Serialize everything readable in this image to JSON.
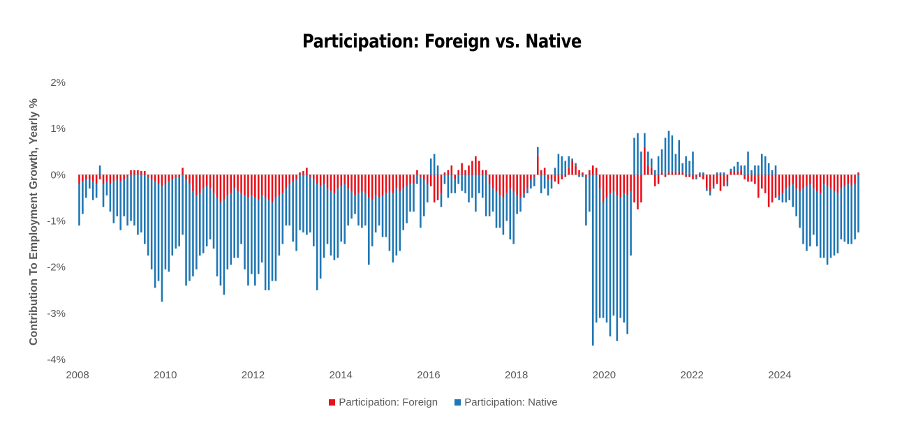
{
  "chart_data": {
    "type": "bar",
    "stacked": true,
    "title": "Participation: Foreign vs. Native",
    "xlabel": "",
    "ylabel": "Contribution To Employment Growth, Yearly %",
    "ylim": [
      -4,
      2
    ],
    "yticks": [
      "2%",
      "1%",
      "0%",
      "-1%",
      "-2%",
      "-3%",
      "-4%"
    ],
    "ytick_values": [
      2,
      1,
      0,
      -1,
      -2,
      -3,
      -4
    ],
    "xticks": [
      "2008",
      "2010",
      "2012",
      "2014",
      "2016",
      "2018",
      "2020",
      "2022",
      "2024"
    ],
    "xtick_values": [
      2008,
      2010,
      2012,
      2014,
      2016,
      2018,
      2020,
      2022,
      2024
    ],
    "x_start": 2008,
    "x_end": 2025.83,
    "frequency": "monthly",
    "legend_position": "bottom",
    "series": [
      {
        "name": "Participation: Foreign",
        "color": "#E8111B",
        "values": [
          -0.2,
          -0.15,
          -0.1,
          -0.1,
          -0.15,
          -0.2,
          -0.1,
          -0.2,
          -0.15,
          -0.2,
          -0.15,
          -0.1,
          -0.15,
          -0.1,
          -0.05,
          0.1,
          0.1,
          0.1,
          0.08,
          0.08,
          -0.05,
          -0.1,
          -0.15,
          -0.2,
          -0.25,
          -0.2,
          -0.15,
          -0.1,
          -0.05,
          -0.05,
          0.15,
          -0.1,
          -0.2,
          -0.35,
          -0.45,
          -0.4,
          -0.3,
          -0.25,
          -0.3,
          -0.4,
          -0.5,
          -0.6,
          -0.55,
          -0.45,
          -0.4,
          -0.3,
          -0.35,
          -0.4,
          -0.45,
          -0.5,
          -0.45,
          -0.5,
          -0.55,
          -0.45,
          -0.5,
          -0.55,
          -0.6,
          -0.5,
          -0.45,
          -0.4,
          -0.3,
          -0.2,
          -0.15,
          -0.1,
          0.05,
          0.08,
          0.15,
          -0.05,
          -0.1,
          -0.2,
          -0.25,
          -0.2,
          -0.3,
          -0.35,
          -0.4,
          -0.3,
          -0.25,
          -0.2,
          -0.3,
          -0.35,
          -0.45,
          -0.4,
          -0.35,
          -0.4,
          -0.5,
          -0.55,
          -0.45,
          -0.5,
          -0.45,
          -0.4,
          -0.35,
          -0.4,
          -0.3,
          -0.35,
          -0.3,
          -0.25,
          -0.2,
          -0.2,
          0.1,
          -0.05,
          -0.1,
          -0.2,
          -0.25,
          -0.6,
          -0.55,
          -0.4,
          0.05,
          0.1,
          0.2,
          -0.1,
          0.1,
          0.25,
          0.1,
          0.2,
          0.3,
          0.4,
          0.3,
          0.1,
          0.1,
          -0.2,
          -0.3,
          -0.35,
          -0.45,
          -0.5,
          -0.4,
          -0.3,
          -0.35,
          -0.45,
          -0.5,
          -0.4,
          -0.3,
          -0.1,
          -0.05,
          0.4,
          0.1,
          0.15,
          -0.1,
          -0.1,
          -0.15,
          -0.2,
          -0.1,
          -0.05,
          0.15,
          0.3,
          0.2,
          0.1,
          0.05,
          -0.05,
          0.1,
          0.2,
          0.15,
          -0.3,
          -0.6,
          -0.5,
          -0.4,
          -0.35,
          -0.45,
          -0.5,
          -0.4,
          -0.45,
          -0.35,
          -0.6,
          -0.75,
          -0.6,
          0.6,
          0.2,
          0.15,
          -0.25,
          -0.2,
          0.05,
          -0.05,
          0.05,
          0.05,
          0.05,
          0.05,
          0.05,
          -0.05,
          -0.05,
          -0.1,
          -0.05,
          -0.05,
          -0.1,
          -0.3,
          -0.35,
          -0.25,
          -0.2,
          -0.35,
          -0.25,
          -0.15,
          0.08,
          0.08,
          0.08,
          0.1,
          -0.1,
          -0.15,
          -0.15,
          -0.2,
          -0.5,
          -0.3,
          -0.4,
          -0.7,
          -0.6,
          -0.5,
          -0.45,
          -0.4,
          -0.3,
          -0.25,
          -0.2,
          -0.3,
          -0.35,
          -0.3,
          -0.25,
          -0.2,
          -0.3,
          -0.35,
          -0.4,
          -0.2,
          -0.25,
          -0.3,
          -0.35,
          -0.4,
          -0.3,
          -0.25,
          -0.2,
          -0.25,
          -0.2,
          0.05
        ]
      },
      {
        "name": "Participation: Native",
        "color": "#1F77B4",
        "values": [
          -0.9,
          -0.7,
          -0.4,
          -0.2,
          -0.4,
          -0.3,
          0.2,
          -0.5,
          -0.3,
          -0.6,
          -0.9,
          -0.8,
          -1.05,
          -0.8,
          -1.05,
          -1.0,
          -1.1,
          -1.3,
          -1.25,
          -1.5,
          -1.7,
          -1.95,
          -2.3,
          -2.1,
          -2.5,
          -1.85,
          -1.95,
          -1.65,
          -1.55,
          -1.5,
          -1.3,
          -2.3,
          -2.1,
          -1.85,
          -1.6,
          -1.35,
          -1.4,
          -1.3,
          -1.1,
          -1.2,
          -1.7,
          -1.8,
          -2.05,
          -1.6,
          -1.55,
          -1.5,
          -1.45,
          -1.1,
          -1.6,
          -1.9,
          -1.7,
          -1.9,
          -1.6,
          -1.45,
          -2.0,
          -1.95,
          -1.7,
          -1.8,
          -1.3,
          -1.1,
          -0.8,
          -0.9,
          -1.3,
          -1.55,
          -1.2,
          -1.25,
          -1.3,
          -1.2,
          -1.45,
          -2.3,
          -2.0,
          -1.6,
          -1.2,
          -1.4,
          -1.45,
          -1.5,
          -1.2,
          -1.3,
          -0.8,
          -0.6,
          -0.4,
          -0.7,
          -0.8,
          -0.7,
          -1.45,
          -1.0,
          -0.8,
          -0.6,
          -0.9,
          -0.95,
          -1.3,
          -1.5,
          -1.45,
          -1.3,
          -0.9,
          -0.8,
          -0.6,
          -0.6,
          -0.2,
          -1.1,
          -0.8,
          -0.4,
          0.35,
          0.45,
          0.2,
          -0.3,
          -0.2,
          -0.5,
          -0.4,
          -0.3,
          -0.2,
          -0.35,
          -0.4,
          -0.6,
          -0.5,
          -0.8,
          -0.4,
          -0.5,
          -0.9,
          -0.7,
          -0.5,
          -0.8,
          -0.7,
          -0.8,
          -0.6,
          -1.1,
          -1.15,
          -0.4,
          -0.3,
          -0.1,
          -0.1,
          -0.2,
          -0.2,
          0.2,
          -0.4,
          -0.3,
          -0.35,
          -0.2,
          0.15,
          0.45,
          0.4,
          0.3,
          0.25,
          0.05,
          0.05,
          -0.05,
          -0.05,
          -1.05,
          -0.8,
          -3.7,
          -3.2,
          -2.8,
          -2.5,
          -2.7,
          -3.1,
          -2.7,
          -3.15,
          -2.6,
          -2.8,
          -3.0,
          -1.4,
          0.8,
          0.9,
          0.5,
          0.3,
          0.3,
          0.2,
          0.1,
          0.4,
          0.5,
          0.8,
          0.9,
          0.8,
          0.4,
          0.7,
          0.2,
          0.4,
          0.3,
          0.5,
          -0.05,
          0.05,
          0.05,
          -0.05,
          -0.1,
          -0.05,
          0.05,
          0.05,
          0.05,
          -0.1,
          0.05,
          0.1,
          0.2,
          0.1,
          0.2,
          0.5,
          0.1,
          0.2,
          0.2,
          0.45,
          0.4,
          0.25,
          0.1,
          0.2,
          -0.1,
          -0.2,
          -0.3,
          -0.3,
          -0.5,
          -0.6,
          -0.8,
          -1.2,
          -1.4,
          -1.35,
          -1.0,
          -1.2,
          -1.4,
          -1.6,
          -1.7,
          -1.5,
          -1.4,
          -1.3,
          -1.1,
          -1.2,
          -1.3,
          -1.25,
          -1.2,
          -1.25
        ]
      }
    ]
  }
}
